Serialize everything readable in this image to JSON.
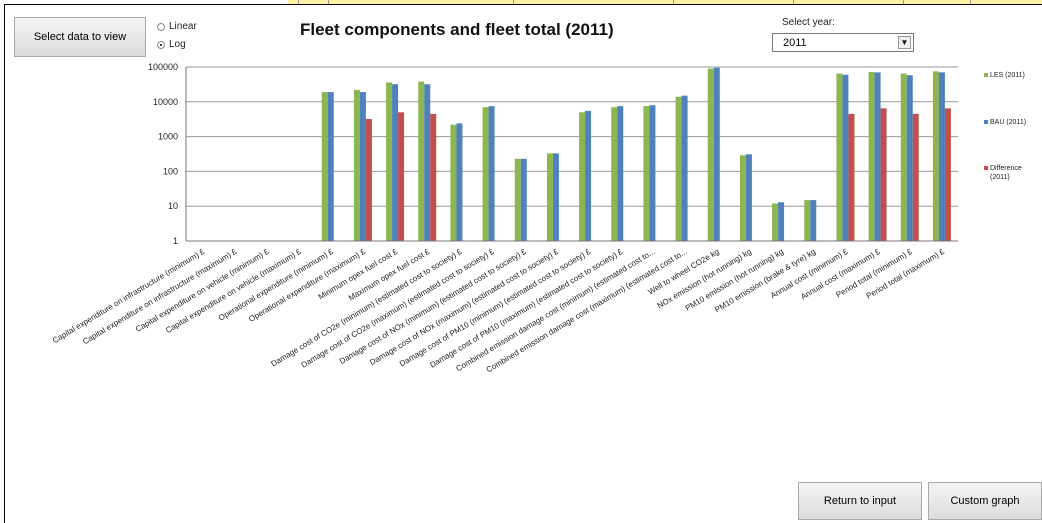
{
  "controls": {
    "select_data_label": "Select data to view",
    "scale_options": [
      "Linear",
      "Log"
    ],
    "selected_scale": "Log",
    "select_year_label": "Select year:",
    "year_value": "2011",
    "return_label": "Return to input",
    "custom_label": "Custom graph"
  },
  "colors": {
    "les": "#8db552",
    "bau": "#4f81bd",
    "diff": "#c0504d"
  },
  "chart_data": {
    "type": "bar",
    "title": "Fleet components and fleet total (2011)",
    "yscale": "log",
    "ylim": [
      1,
      100000
    ],
    "yticks": [
      "1",
      "10",
      "100",
      "1000",
      "10000",
      "100000"
    ],
    "legend_position": "right",
    "categories": [
      "Capital expenditure on infrastructure (minimum) £",
      "Capital expenditure on infrastructure (maximum) £",
      "Capital expenditure on vehicle (minimum) £",
      "Capital expenditure on vehicle (maximum) £",
      "Operational expenditure (minimum) £",
      "Operational expenditure (maximum) £",
      "Minimum opex fuel cost £",
      "Maximum opex fuel cost £",
      "Damage cost of CO2e (minimum) (estimated cost to society) £",
      "Damage cost of CO2e (maximum) (estimated cost to society) £",
      "Damage cost of NOx (minimum) (estimated cost to society) £",
      "Damage cost of NOx (maximum) (estimated cost to society) £",
      "Damage cost of PM10 (minimum) (estimated cost to society) £",
      "Damage cost of PM10 (maximum) (estimated cost to society) £",
      "Combined emission damage cost (minimum) (estimated cost to...",
      "Combined emission damage cost (maximum) (estimated cost to...",
      "Well to wheel CO2e kg",
      "NOx emission (hot running) kg",
      "PM10 emission (hot running) kg",
      "PM10 emission (brake & tyre) kg",
      "Annual cost (minimum) £",
      "Annual cost (maximum) £",
      "Period total (minimum) £",
      "Period total (maximum) £"
    ],
    "series": [
      {
        "name": "LES (2011)",
        "values": [
          null,
          null,
          null,
          null,
          19000,
          22000,
          36000,
          38000,
          2200,
          7000,
          230,
          330,
          5000,
          7000,
          7500,
          14000,
          90000,
          290,
          12,
          15,
          65000,
          72000,
          65000,
          75000
        ]
      },
      {
        "name": "BAU (2011)",
        "values": [
          null,
          null,
          null,
          null,
          19000,
          19000,
          32000,
          32000,
          2400,
          7500,
          230,
          330,
          5500,
          7500,
          8000,
          15000,
          95000,
          310,
          13,
          15,
          60000,
          70000,
          58000,
          70000
        ]
      },
      {
        "name": "Difference (2011)",
        "values": [
          null,
          null,
          null,
          null,
          null,
          3200,
          5000,
          4500,
          null,
          null,
          null,
          null,
          null,
          null,
          null,
          null,
          null,
          null,
          null,
          null,
          4500,
          6500,
          4500,
          6500
        ]
      }
    ]
  }
}
